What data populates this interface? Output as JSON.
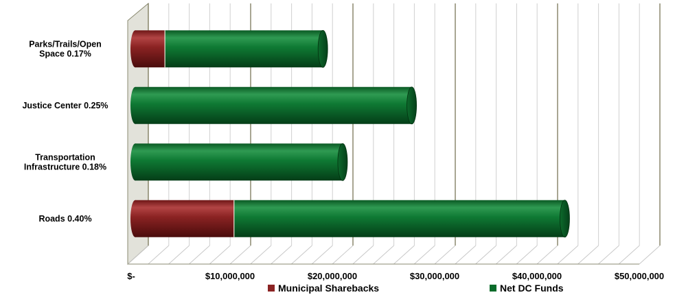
{
  "chart_data": {
    "type": "bar",
    "orientation": "horizontal",
    "stacked": true,
    "style": "3d-cylinder",
    "categories": [
      "Parks/Trails/Open Space 0.17%",
      "Justice Center 0.25%",
      "Transportation Infrastructure 0.18%",
      "Roads 0.40%"
    ],
    "series": [
      {
        "name": "Municipal Sharebacks",
        "color": "#8B2323",
        "values": [
          3000000,
          0,
          0,
          10000000
        ]
      },
      {
        "name": "Net DC Funds",
        "color": "#0A6B2A",
        "values": [
          16000000,
          28000000,
          21000000,
          33500000
        ]
      }
    ],
    "xlim": [
      0,
      50000000
    ],
    "x_tick_values": [
      0,
      10000000,
      20000000,
      30000000,
      40000000,
      50000000
    ],
    "x_tick_labels": [
      "$-",
      "$10,000,000",
      "$20,000,000",
      "$30,000,000",
      "$40,000,000",
      "$50,000,000"
    ],
    "grid": true,
    "legend_position": "bottom"
  }
}
